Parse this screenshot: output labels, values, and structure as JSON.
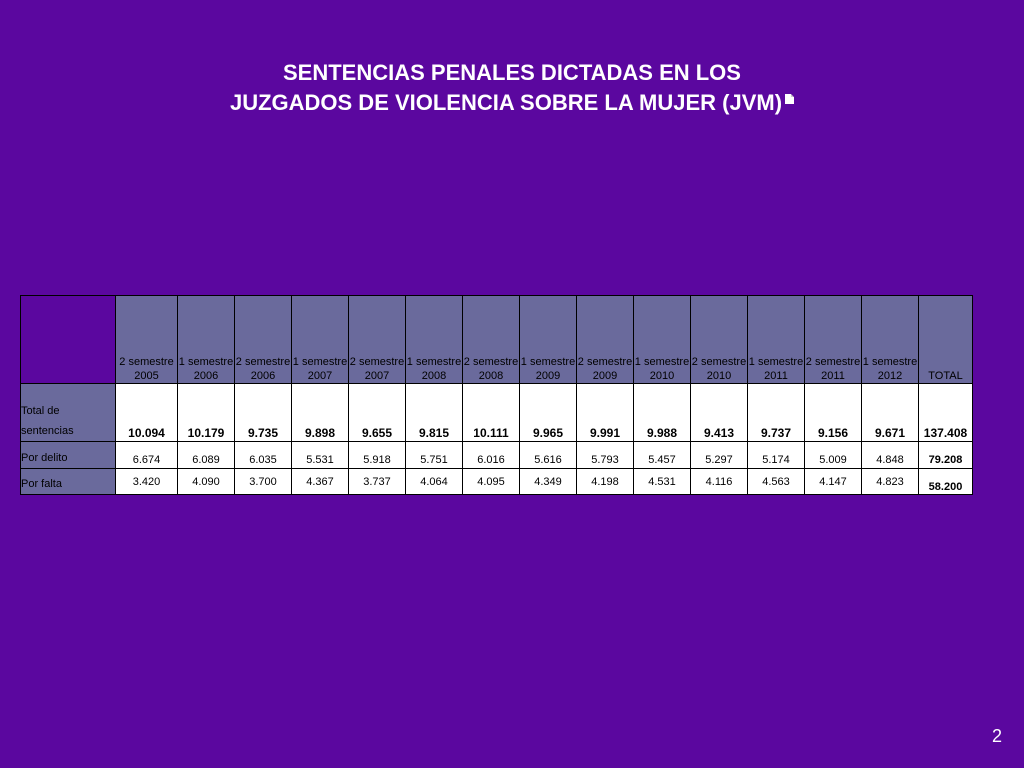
{
  "title": {
    "line1": "SENTENCIAS PENALES DICTADAS EN LOS",
    "line2": "JUZGADOS DE VIOLENCIA SOBRE LA MUJER (JVM)"
  },
  "table": {
    "headers": [
      {
        "line1": "2 semestre",
        "line2": "2005"
      },
      {
        "line1": "1 semestre",
        "line2": "2006"
      },
      {
        "line1": "2 semestre",
        "line2": "2006"
      },
      {
        "line1": "1 semestre",
        "line2": "2007"
      },
      {
        "line1": "2 semestre",
        "line2": "2007"
      },
      {
        "line1": "1 semestre",
        "line2": "2008"
      },
      {
        "line1": "2 semestre",
        "line2": "2008"
      },
      {
        "line1": "1 semestre",
        "line2": "2009"
      },
      {
        "line1": "2 semestre",
        "line2": "2009"
      },
      {
        "line1": "1 semestre",
        "line2": "2010"
      },
      {
        "line1": "2 semestre",
        "line2": "2010"
      },
      {
        "line1": "1 semestre",
        "line2": "2011"
      },
      {
        "line1": "2 semestre",
        "line2": "2011"
      },
      {
        "line1": "1 semestre",
        "line2": "2012"
      }
    ],
    "total_header": "TOTAL",
    "rows": [
      {
        "label_line1": "Total de",
        "label_line2": "sentencias",
        "values": [
          "10.094",
          "10.179",
          "9.735",
          "9.898",
          "9.655",
          "9.815",
          "10.111",
          "9.965",
          "9.991",
          "9.988",
          "9.413",
          "9.737",
          "9.156",
          "9.671"
        ],
        "total": "137.408"
      },
      {
        "label": "Por delito",
        "values": [
          "6.674",
          "6.089",
          "6.035",
          "5.531",
          "5.918",
          "5.751",
          "6.016",
          "5.616",
          "5.793",
          "5.457",
          "5.297",
          "5.174",
          "5.009",
          "4.848"
        ],
        "total": "79.208"
      },
      {
        "label": "Por falta",
        "values": [
          "3.420",
          "4.090",
          "3.700",
          "4.367",
          "3.737",
          "4.064",
          "4.095",
          "4.349",
          "4.198",
          "4.531",
          "4.116",
          "4.563",
          "4.147",
          "4.823"
        ],
        "total": "58.200"
      }
    ]
  },
  "page_number": "2"
}
